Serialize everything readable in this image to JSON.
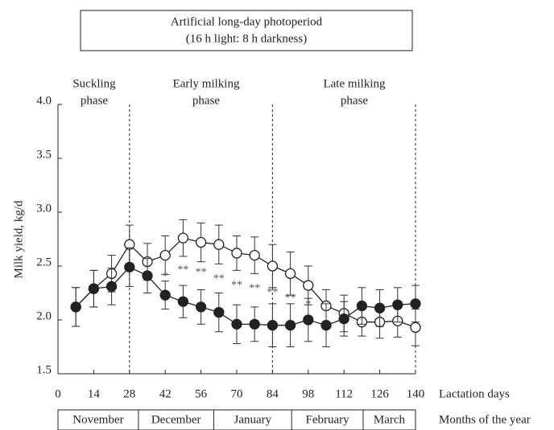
{
  "chart_data": {
    "type": "line",
    "title": [
      "Artificial  long-day photoperiod",
      "(16 h light: 8 h darkness)"
    ],
    "phases": [
      [
        "Suckling",
        "phase"
      ],
      [
        "Early milking",
        "phase"
      ],
      [
        "Late milking",
        "phase"
      ]
    ],
    "phase_dividers": [
      28,
      84,
      140
    ],
    "ylabel": "Milk yield,  kg/d",
    "xlabel": "Lactation days",
    "x": [
      7,
      14,
      21,
      28,
      35,
      42,
      49,
      56,
      63,
      70,
      77,
      84,
      91,
      98,
      105,
      112,
      119,
      126,
      133,
      140
    ],
    "series": [
      {
        "color": "#222222",
        "marker": "open",
        "values": [
          2.12,
          2.29,
          2.43,
          2.7,
          2.54,
          2.6,
          2.76,
          2.72,
          2.7,
          2.62,
          2.6,
          2.5,
          2.43,
          2.32,
          2.13,
          2.06,
          1.98,
          1.98,
          1.99,
          1.93
        ],
        "errors": [
          0.18,
          0.17,
          0.17,
          0.18,
          0.17,
          0.18,
          0.17,
          0.18,
          0.18,
          0.16,
          0.17,
          0.2,
          0.2,
          0.18,
          0.15,
          0.17,
          0.13,
          0.15,
          0.15,
          0.17
        ]
      },
      {
        "color": "#222222",
        "marker": "filled",
        "values": [
          2.12,
          2.29,
          2.31,
          2.49,
          2.41,
          2.23,
          2.17,
          2.12,
          2.07,
          1.96,
          1.96,
          1.95,
          1.95,
          2.0,
          1.95,
          2.01,
          2.13,
          2.11,
          2.14,
          2.15
        ],
        "errors": [
          0.18,
          0.17,
          0.17,
          0.18,
          0.16,
          0.13,
          0.15,
          0.16,
          0.18,
          0.18,
          0.16,
          0.2,
          0.2,
          0.2,
          0.2,
          0.16,
          0.17,
          0.17,
          0.16,
          0.17
        ]
      }
    ],
    "annotations": [
      {
        "x": 42,
        "y": 2.4,
        "text": "*"
      },
      {
        "x": 49,
        "y": 2.46,
        "text": "**"
      },
      {
        "x": 56,
        "y": 2.44,
        "text": "**"
      },
      {
        "x": 63,
        "y": 2.38,
        "text": "**"
      },
      {
        "x": 70,
        "y": 2.32,
        "text": "**"
      },
      {
        "x": 77,
        "y": 2.29,
        "text": "**"
      },
      {
        "x": 84,
        "y": 2.25,
        "text": "**"
      },
      {
        "x": 91,
        "y": 2.2,
        "text": "**"
      },
      {
        "x": 98,
        "y": 2.14,
        "text": "*"
      }
    ],
    "xlim": [
      0,
      140
    ],
    "xticks": [
      0,
      14,
      28,
      42,
      56,
      70,
      84,
      98,
      112,
      126,
      140
    ],
    "ylim": [
      1.5,
      4.0
    ],
    "yticks": [
      1.5,
      {
        "value": 2,
        "label": "2.0"
      },
      2.5,
      {
        "value": 3,
        "label": "3.0"
      },
      3.5,
      {
        "value": 4,
        "label": "4.0"
      }
    ],
    "months": [
      "November",
      "December",
      "January",
      "February",
      "March"
    ],
    "month_bounds": [
      0,
      31.5,
      61,
      91.5,
      119.5,
      140
    ],
    "months_label": "Months of the year"
  }
}
